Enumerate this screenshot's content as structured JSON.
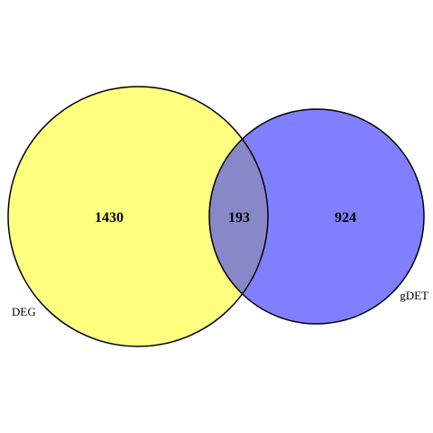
{
  "venn": {
    "sets": [
      {
        "name": "DEG",
        "only_count": "1430",
        "fill": "#ffff80"
      },
      {
        "name": "gDET",
        "only_count": "924",
        "fill": "#8080ff"
      }
    ],
    "intersection": {
      "count": "193",
      "fill": "#8888c8"
    },
    "outline_color": "#000000"
  }
}
